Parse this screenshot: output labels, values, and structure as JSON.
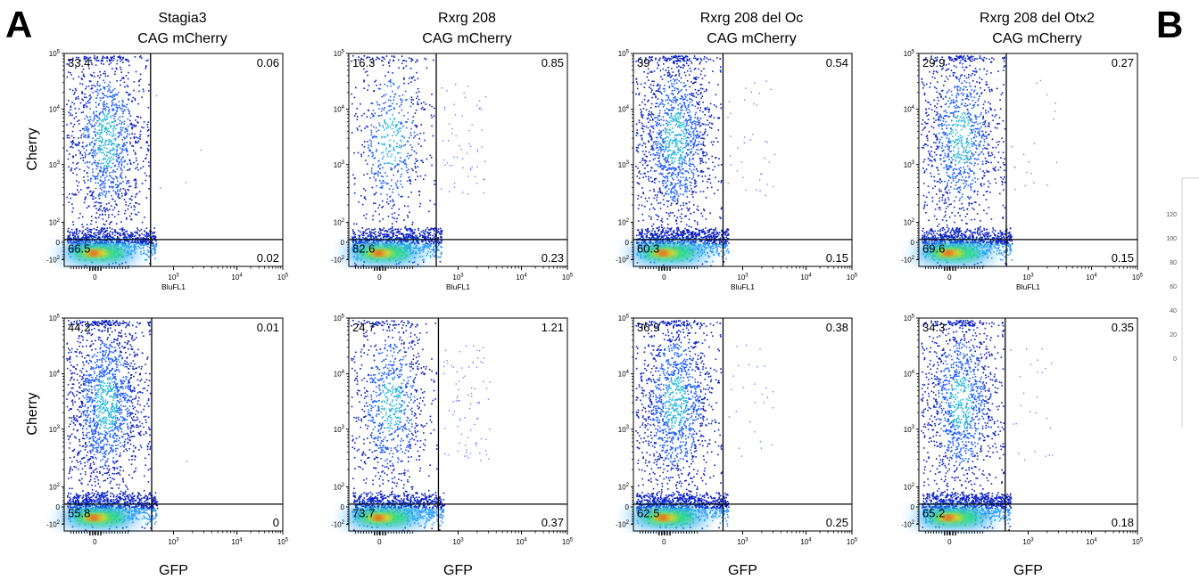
{
  "figure": {
    "panel_labels": [
      "A",
      "B"
    ],
    "x_tick_labels": [
      "0",
      "10^3",
      "10^4",
      "10^5"
    ],
    "y_tick_labels": [
      "10^5",
      "10^4",
      "10^3",
      "10^2",
      "0",
      "-10^2"
    ],
    "row_xlabels": [
      "BluFL1",
      "GFP"
    ],
    "row_ylabels": [
      "Cherry",
      "Cherry"
    ],
    "b_axis_ticks": [
      "120",
      "100",
      "80",
      "60",
      "40",
      "20",
      "0"
    ]
  },
  "chart_data": [
    {
      "type": "scatter",
      "title": [
        "Stagia3",
        "CAG mCherry"
      ],
      "xlabel": "BluFL1",
      "ylabel": "Cherry",
      "x_scale": "logicle",
      "y_scale": "logicle",
      "quadrants": {
        "ul": "33.4",
        "ur": "0.06",
        "ll": "66.5",
        "lr": "0.02"
      }
    },
    {
      "type": "scatter",
      "title": [
        "Rxrg 208",
        "CAG mCherry"
      ],
      "xlabel": "BluFL1",
      "ylabel": "",
      "x_scale": "logicle",
      "y_scale": "logicle",
      "quadrants": {
        "ul": "16.3",
        "ur": "0.85",
        "ll": "82.6",
        "lr": "0.23"
      }
    },
    {
      "type": "scatter",
      "title": [
        "Rxrg 208 del Oc",
        "CAG mCherry"
      ],
      "xlabel": "BluFL1",
      "ylabel": "",
      "x_scale": "logicle",
      "y_scale": "logicle",
      "quadrants": {
        "ul": "39",
        "ur": "0.54",
        "ll": "60.3",
        "lr": "0.15"
      }
    },
    {
      "type": "scatter",
      "title": [
        "Rxrg 208 del Otx2",
        "CAG mCherry"
      ],
      "xlabel": "BluFL1",
      "ylabel": "",
      "x_scale": "logicle",
      "y_scale": "logicle",
      "quadrants": {
        "ul": "29.9",
        "ur": "0.27",
        "ll": "69.6",
        "lr": "0.15"
      }
    },
    {
      "type": "scatter",
      "title": [],
      "xlabel": "GFP",
      "ylabel": "Cherry",
      "x_scale": "logicle",
      "y_scale": "logicle",
      "quadrants": {
        "ul": "44.2",
        "ur": "0.01",
        "ll": "55.8",
        "lr": "0"
      }
    },
    {
      "type": "scatter",
      "title": [],
      "xlabel": "GFP",
      "ylabel": "",
      "x_scale": "logicle",
      "y_scale": "logicle",
      "quadrants": {
        "ul": "24.7",
        "ur": "1.21",
        "ll": "73.7",
        "lr": "0.37"
      }
    },
    {
      "type": "scatter",
      "title": [],
      "xlabel": "GFP",
      "ylabel": "",
      "x_scale": "logicle",
      "y_scale": "logicle",
      "quadrants": {
        "ul": "36.9",
        "ur": "0.38",
        "ll": "62.5",
        "lr": "0.25"
      }
    },
    {
      "type": "scatter",
      "title": [],
      "xlabel": "GFP",
      "ylabel": "",
      "x_scale": "logicle",
      "y_scale": "logicle",
      "quadrants": {
        "ul": "34.3",
        "ur": "0.35",
        "ll": "65.2",
        "lr": "0.18"
      }
    }
  ]
}
